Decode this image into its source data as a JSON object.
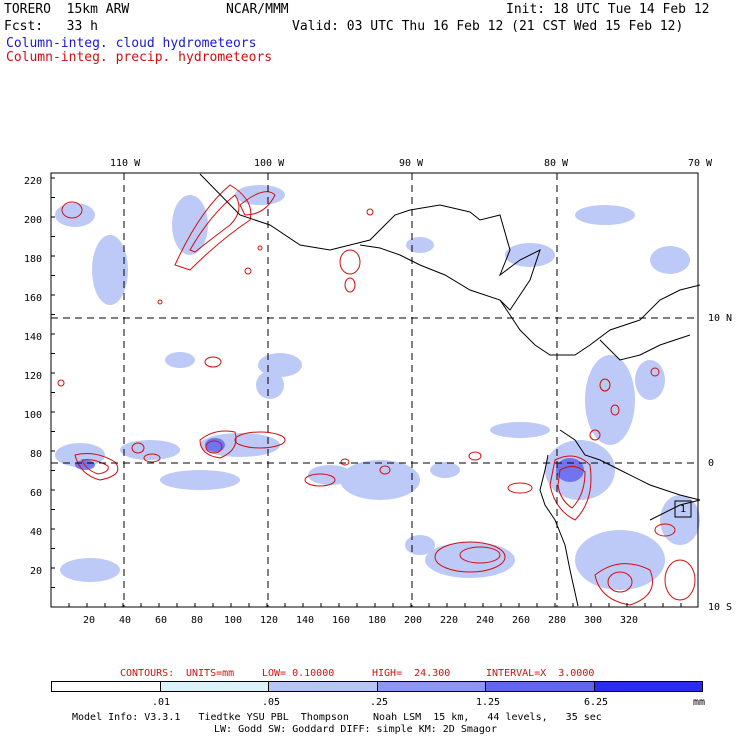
{
  "header": {
    "model": "TORERO  15km ARW",
    "org": "NCAR/MMM",
    "init": "Init: 18 UTC Tue 14 Feb 12",
    "fcst": "Fcst:   33 h",
    "valid": "Valid: 03 UTC Thu 16 Feb 12 (21 CST Wed 15 Feb 12)",
    "field1": "Column-integ. cloud hydrometeors",
    "field2": "Column-integ. precip. hydrometeors"
  },
  "map": {
    "lon_labels": [
      "110 W",
      "100 W",
      "90 W",
      "80 W",
      "70 W"
    ],
    "lat_labels": [
      "10 N",
      "0",
      "10 S"
    ],
    "x_ticks": [
      "20",
      "40",
      "60",
      "80",
      "100",
      "120",
      "140",
      "160",
      "180",
      "200",
      "220",
      "240",
      "260",
      "280",
      "300",
      "320"
    ],
    "y_ticks": [
      "220",
      "200",
      "180",
      "160",
      "140",
      "120",
      "100",
      "80",
      "60",
      "40",
      "20"
    ],
    "marker": "1"
  },
  "contours": {
    "label": "CONTOURS:",
    "units": "UNITS=mm",
    "low": "LOW= 0.10000",
    "high": "HIGH=  24.300",
    "interval": "INTERVAL=X  3.0000"
  },
  "legend": {
    "ticks": [
      ".01",
      ".05",
      ".25",
      "1.25",
      "6.25"
    ],
    "unit": "mm",
    "colors": [
      "#ffffff",
      "#dbf2fb",
      "#b6c4f6",
      "#8f96ef",
      "#6266ee",
      "#2a2af0"
    ]
  },
  "footer": {
    "line1": "Model Info: V3.3.1   Tiedtke YSU PBL  Thompson    Noah LSM  15 km,   44 levels,   35 sec",
    "line2": "LW: Godd SW: Goddard DIFF: simple KM: 2D Smagor"
  }
}
